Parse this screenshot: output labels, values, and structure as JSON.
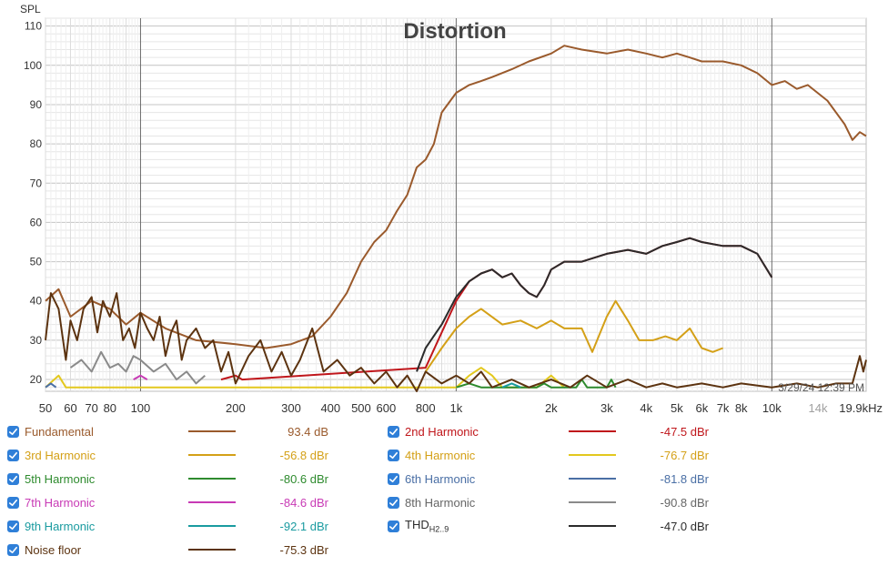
{
  "chart_data": {
    "type": "line",
    "title": "Distortion",
    "ylabel": "SPL",
    "xunit": "Hz",
    "xscale": "log",
    "xlim": [
      50,
      19900
    ],
    "ylim": [
      17,
      112
    ],
    "yticks": [
      20,
      30,
      40,
      50,
      60,
      70,
      80,
      90,
      100,
      110
    ],
    "xticks": [
      {
        "v": 50,
        "label": "50"
      },
      {
        "v": 60,
        "label": "60"
      },
      {
        "v": 70,
        "label": "70"
      },
      {
        "v": 80,
        "label": "80"
      },
      {
        "v": 100,
        "label": "100"
      },
      {
        "v": 200,
        "label": "200"
      },
      {
        "v": 300,
        "label": "300"
      },
      {
        "v": 400,
        "label": "400"
      },
      {
        "v": 500,
        "label": "500"
      },
      {
        "v": 600,
        "label": "600"
      },
      {
        "v": 800,
        "label": "800"
      },
      {
        "v": 1000,
        "label": "1k"
      },
      {
        "v": 2000,
        "label": "2k"
      },
      {
        "v": 3000,
        "label": "3k"
      },
      {
        "v": 4000,
        "label": "4k"
      },
      {
        "v": 5000,
        "label": "5k"
      },
      {
        "v": 6000,
        "label": "6k"
      },
      {
        "v": 7000,
        "label": "7k"
      },
      {
        "v": 8000,
        "label": "8k"
      },
      {
        "v": 10000,
        "label": "10k"
      },
      {
        "v": 14000,
        "label": "14k",
        "muted": true
      },
      {
        "v": 19900,
        "label": "19.9kHz"
      }
    ],
    "timestamp": "3/29/24 12:39 PM",
    "series": [
      {
        "name": "Fundamental",
        "color": "#9a5a2c",
        "points": [
          [
            50,
            40
          ],
          [
            55,
            43
          ],
          [
            60,
            36
          ],
          [
            70,
            40
          ],
          [
            80,
            38
          ],
          [
            90,
            34
          ],
          [
            100,
            37
          ],
          [
            120,
            33
          ],
          [
            150,
            30
          ],
          [
            200,
            29
          ],
          [
            250,
            28
          ],
          [
            300,
            29
          ],
          [
            350,
            31
          ],
          [
            400,
            36
          ],
          [
            450,
            42
          ],
          [
            500,
            50
          ],
          [
            550,
            55
          ],
          [
            600,
            58
          ],
          [
            650,
            63
          ],
          [
            700,
            67
          ],
          [
            750,
            74
          ],
          [
            800,
            76
          ],
          [
            850,
            80
          ],
          [
            900,
            88
          ],
          [
            1000,
            93
          ],
          [
            1100,
            95
          ],
          [
            1200,
            96
          ],
          [
            1300,
            97
          ],
          [
            1500,
            99
          ],
          [
            1700,
            101
          ],
          [
            2000,
            103
          ],
          [
            2200,
            105
          ],
          [
            2500,
            104
          ],
          [
            3000,
            103
          ],
          [
            3500,
            104
          ],
          [
            4000,
            103
          ],
          [
            4500,
            102
          ],
          [
            5000,
            103
          ],
          [
            5500,
            102
          ],
          [
            6000,
            101
          ],
          [
            7000,
            101
          ],
          [
            8000,
            100
          ],
          [
            9000,
            98
          ],
          [
            10000,
            95
          ],
          [
            11000,
            96
          ],
          [
            12000,
            94
          ],
          [
            13000,
            95
          ],
          [
            15000,
            91
          ],
          [
            17000,
            85
          ],
          [
            18000,
            81
          ],
          [
            19000,
            83
          ],
          [
            19900,
            82
          ]
        ]
      },
      {
        "name": "2nd Harmonic",
        "color": "#c0161b",
        "points": [
          [
            180,
            20
          ],
          [
            200,
            21
          ],
          [
            210,
            20
          ],
          [
            800,
            23
          ],
          [
            900,
            32
          ],
          [
            1000,
            40
          ],
          [
            1100,
            45
          ],
          [
            1200,
            47
          ],
          [
            1300,
            48
          ],
          [
            1400,
            46
          ],
          [
            1500,
            47
          ],
          [
            1600,
            44
          ],
          [
            1700,
            42
          ],
          [
            1800,
            41
          ],
          [
            1900,
            44
          ],
          [
            2000,
            48
          ],
          [
            2200,
            50
          ],
          [
            2500,
            50
          ],
          [
            3000,
            52
          ],
          [
            3500,
            53
          ],
          [
            4000,
            52
          ],
          [
            4500,
            54
          ],
          [
            5000,
            55
          ],
          [
            5500,
            56
          ],
          [
            6000,
            55
          ],
          [
            7000,
            54
          ],
          [
            8000,
            54
          ],
          [
            9000,
            52
          ],
          [
            10000,
            46
          ]
        ]
      },
      {
        "name": "3rd Harmonic",
        "color": "#d4a017",
        "points": [
          [
            800,
            22
          ],
          [
            900,
            28
          ],
          [
            1000,
            33
          ],
          [
            1100,
            36
          ],
          [
            1200,
            38
          ],
          [
            1400,
            34
          ],
          [
            1600,
            35
          ],
          [
            1800,
            33
          ],
          [
            2000,
            35
          ],
          [
            2200,
            33
          ],
          [
            2500,
            33
          ],
          [
            2700,
            27
          ],
          [
            3000,
            36
          ],
          [
            3200,
            40
          ],
          [
            3500,
            35
          ],
          [
            3800,
            30
          ],
          [
            4200,
            30
          ],
          [
            4600,
            31
          ],
          [
            5000,
            30
          ],
          [
            5500,
            33
          ],
          [
            6000,
            28
          ],
          [
            6500,
            27
          ],
          [
            7000,
            28
          ]
        ]
      },
      {
        "name": "4th Harmonic",
        "color": "#e3c81e",
        "points": [
          [
            50,
            18
          ],
          [
            55,
            21
          ],
          [
            58,
            18
          ],
          [
            1000,
            18
          ],
          [
            1100,
            21
          ],
          [
            1200,
            23
          ],
          [
            1300,
            21
          ],
          [
            1400,
            18
          ],
          [
            1800,
            18
          ],
          [
            2000,
            21
          ],
          [
            2200,
            18
          ]
        ]
      },
      {
        "name": "5th Harmonic",
        "color": "#2e8b2e",
        "points": [
          [
            1000,
            18
          ],
          [
            1100,
            19
          ],
          [
            1200,
            18
          ],
          [
            1800,
            18
          ],
          [
            1900,
            19
          ],
          [
            2000,
            18
          ],
          [
            2400,
            18
          ],
          [
            2500,
            20
          ],
          [
            2600,
            18
          ],
          [
            3000,
            18
          ],
          [
            3100,
            20
          ],
          [
            3200,
            18
          ]
        ]
      },
      {
        "name": "6th Harmonic",
        "color": "#4a6fa5",
        "points": [
          [
            50,
            18
          ],
          [
            52,
            19
          ],
          [
            54,
            18
          ]
        ]
      },
      {
        "name": "7th Harmonic",
        "color": "#c83ab5",
        "points": [
          [
            95,
            20
          ],
          [
            100,
            21
          ],
          [
            105,
            20
          ]
        ]
      },
      {
        "name": "8th Harmonic",
        "color": "#8a8a8a",
        "points": [
          [
            60,
            23
          ],
          [
            65,
            25
          ],
          [
            70,
            22
          ],
          [
            75,
            27
          ],
          [
            80,
            23
          ],
          [
            85,
            24
          ],
          [
            90,
            22
          ],
          [
            95,
            26
          ],
          [
            100,
            25
          ],
          [
            110,
            22
          ],
          [
            120,
            24
          ],
          [
            130,
            20
          ],
          [
            140,
            22
          ],
          [
            150,
            19
          ],
          [
            160,
            21
          ]
        ]
      },
      {
        "name": "9th Harmonic",
        "color": "#1a9ba0",
        "points": [
          [
            1400,
            18
          ],
          [
            1500,
            19
          ],
          [
            1600,
            18
          ]
        ]
      },
      {
        "name": "THD H2..9",
        "color": "#2b2b2b",
        "points": [
          [
            750,
            22
          ],
          [
            800,
            28
          ],
          [
            900,
            34
          ],
          [
            1000,
            41
          ],
          [
            1100,
            45
          ],
          [
            1200,
            47
          ],
          [
            1300,
            48
          ],
          [
            1400,
            46
          ],
          [
            1500,
            47
          ],
          [
            1600,
            44
          ],
          [
            1700,
            42
          ],
          [
            1800,
            41
          ],
          [
            1900,
            44
          ],
          [
            2000,
            48
          ],
          [
            2200,
            50
          ],
          [
            2500,
            50
          ],
          [
            3000,
            52
          ],
          [
            3500,
            53
          ],
          [
            4000,
            52
          ],
          [
            4500,
            54
          ],
          [
            5000,
            55
          ],
          [
            5500,
            56
          ],
          [
            6000,
            55
          ],
          [
            7000,
            54
          ],
          [
            8000,
            54
          ],
          [
            9000,
            52
          ],
          [
            10000,
            46
          ]
        ]
      },
      {
        "name": "Noise floor",
        "color": "#5c3310",
        "points": [
          [
            50,
            30
          ],
          [
            52,
            42
          ],
          [
            55,
            38
          ],
          [
            58,
            25
          ],
          [
            60,
            35
          ],
          [
            63,
            30
          ],
          [
            66,
            38
          ],
          [
            70,
            41
          ],
          [
            73,
            32
          ],
          [
            76,
            40
          ],
          [
            80,
            36
          ],
          [
            84,
            42
          ],
          [
            88,
            30
          ],
          [
            92,
            33
          ],
          [
            96,
            28
          ],
          [
            100,
            37
          ],
          [
            105,
            33
          ],
          [
            110,
            30
          ],
          [
            115,
            36
          ],
          [
            120,
            26
          ],
          [
            125,
            32
          ],
          [
            130,
            35
          ],
          [
            135,
            25
          ],
          [
            140,
            30
          ],
          [
            150,
            33
          ],
          [
            160,
            28
          ],
          [
            170,
            30
          ],
          [
            180,
            22
          ],
          [
            190,
            27
          ],
          [
            200,
            19
          ],
          [
            220,
            26
          ],
          [
            240,
            30
          ],
          [
            260,
            22
          ],
          [
            280,
            27
          ],
          [
            300,
            21
          ],
          [
            320,
            25
          ],
          [
            350,
            33
          ],
          [
            380,
            22
          ],
          [
            420,
            25
          ],
          [
            460,
            21
          ],
          [
            500,
            23
          ],
          [
            550,
            19
          ],
          [
            600,
            22
          ],
          [
            650,
            18
          ],
          [
            700,
            21
          ],
          [
            750,
            17
          ],
          [
            800,
            22
          ],
          [
            900,
            19
          ],
          [
            1000,
            21
          ],
          [
            1100,
            19
          ],
          [
            1200,
            22
          ],
          [
            1300,
            18
          ],
          [
            1500,
            20
          ],
          [
            1700,
            18
          ],
          [
            2000,
            20
          ],
          [
            2300,
            18
          ],
          [
            2600,
            21
          ],
          [
            3000,
            18
          ],
          [
            3500,
            20
          ],
          [
            4000,
            18
          ],
          [
            4500,
            19
          ],
          [
            5000,
            18
          ],
          [
            6000,
            19
          ],
          [
            7000,
            18
          ],
          [
            8000,
            19
          ],
          [
            10000,
            18
          ],
          [
            12000,
            19
          ],
          [
            14000,
            18
          ],
          [
            16000,
            19
          ],
          [
            18000,
            19
          ],
          [
            19000,
            26
          ],
          [
            19500,
            22
          ],
          [
            19900,
            25
          ]
        ]
      }
    ]
  },
  "legend": {
    "items": [
      {
        "name": "Fundamental",
        "value": "93.4 dB",
        "color": "#9a5a2c",
        "label_color": "#9a5a2c"
      },
      {
        "name": "2nd Harmonic",
        "value": "-47.5 dBr",
        "color": "#c0161b",
        "label_color": "#c0161b"
      },
      {
        "name": "3rd Harmonic",
        "value": "-56.8 dBr",
        "color": "#d4a017",
        "label_color": "#d4a017"
      },
      {
        "name": "4th Harmonic",
        "value": "-76.7 dBr",
        "color": "#e3c81e",
        "label_color": "#d4a017"
      },
      {
        "name": "5th Harmonic",
        "value": "-80.6 dBr",
        "color": "#2e8b2e",
        "label_color": "#2e8b2e"
      },
      {
        "name": "6th Harmonic",
        "value": "-81.8 dBr",
        "color": "#4a6fa5",
        "label_color": "#4a6fa5"
      },
      {
        "name": "7th Harmonic",
        "value": "-84.6 dBr",
        "color": "#c83ab5",
        "label_color": "#c83ab5"
      },
      {
        "name": "8th Harmonic",
        "value": "-90.8 dBr",
        "color": "#8a8a8a",
        "label_color": "#666666"
      },
      {
        "name": "9th Harmonic",
        "value": "-92.1 dBr",
        "color": "#1a9ba0",
        "label_color": "#1a9ba0"
      },
      {
        "name": "THD",
        "name_sub": "H2..9",
        "value": "-47.0 dBr",
        "color": "#2b2b2b",
        "label_color": "#2b2b2b"
      },
      {
        "name": "Noise floor",
        "value": "-75.3 dBr",
        "color": "#5c3310",
        "label_color": "#5c3310"
      }
    ]
  }
}
